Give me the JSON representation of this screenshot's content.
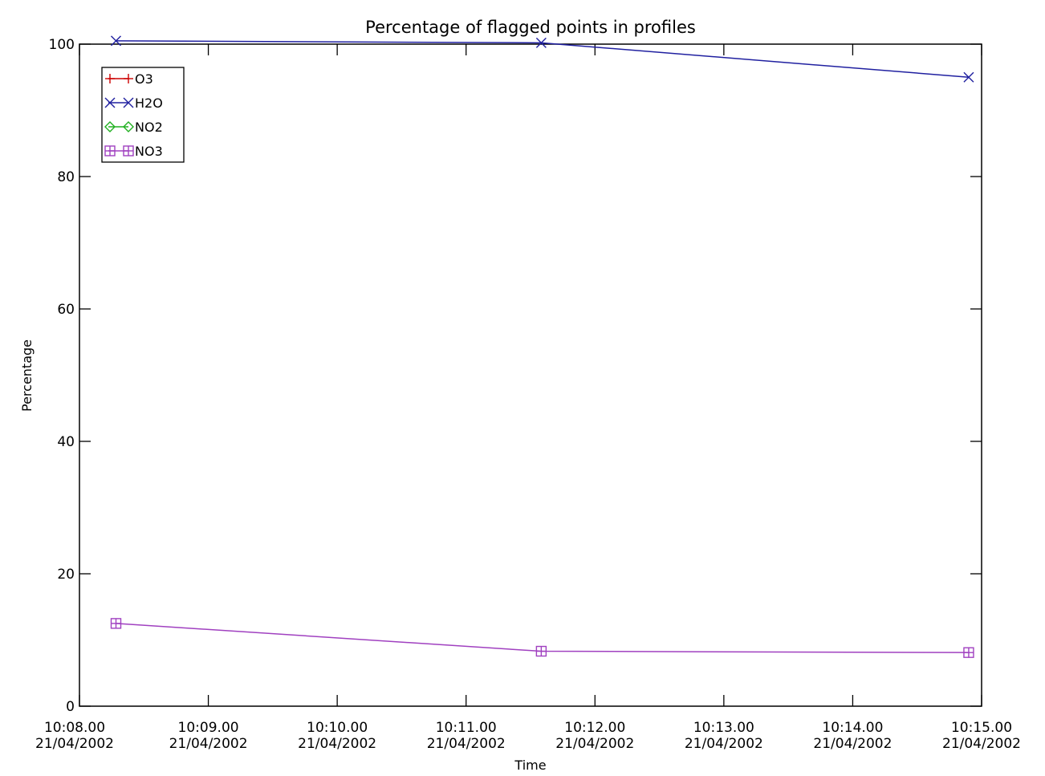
{
  "chart_data": {
    "type": "line",
    "title": "Percentage of flagged points in profiles",
    "xlabel": "Time",
    "ylabel": "Percentage",
    "xlim": [
      "2002-04-21T10:08:00",
      "2002-04-21T10:15:00"
    ],
    "ylim": [
      0,
      100
    ],
    "x_ticks": [
      {
        "time": "10:08.00",
        "date": "21/04/2002"
      },
      {
        "time": "10:09.00",
        "date": "21/04/2002"
      },
      {
        "time": "10:10.00",
        "date": "21/04/2002"
      },
      {
        "time": "10:11.00",
        "date": "21/04/2002"
      },
      {
        "time": "10:12.00",
        "date": "21/04/2002"
      },
      {
        "time": "10:13.00",
        "date": "21/04/2002"
      },
      {
        "time": "10:14.00",
        "date": "21/04/2002"
      },
      {
        "time": "10:15.00",
        "date": "21/04/2002"
      }
    ],
    "y_ticks": [
      "0",
      "20",
      "40",
      "60",
      "80",
      "100"
    ],
    "grid": false,
    "legend_position": "top-left",
    "x": [
      "2002-04-21T10:08:17",
      "2002-04-21T10:11:35",
      "2002-04-21T10:14:54"
    ],
    "series": [
      {
        "name": "O3",
        "color": "#cc0000",
        "marker": "plus",
        "values": [
          null,
          null,
          null
        ]
      },
      {
        "name": "H2O",
        "color": "#2020a0",
        "marker": "x",
        "values": [
          100.5,
          100.2,
          95.0
        ]
      },
      {
        "name": "NO2",
        "color": "#20b020",
        "marker": "diamond",
        "values": [
          null,
          null,
          null
        ]
      },
      {
        "name": "NO3",
        "color": "#a040c0",
        "marker": "square-cross",
        "values": [
          12.5,
          8.3,
          8.1
        ]
      }
    ]
  }
}
